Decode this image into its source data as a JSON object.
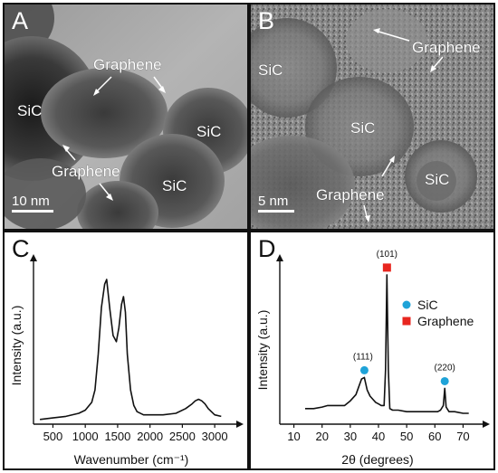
{
  "panels": {
    "a": {
      "letter": "A",
      "labels": {
        "sic_left": "SiC",
        "graphene_top": "Graphene",
        "sic_right": "SiC",
        "graphene_bottom": "Graphene",
        "sic_bottom": "SiC"
      },
      "scale_bar": "10 nm"
    },
    "b": {
      "letter": "B",
      "labels": {
        "graphene_top": "Graphene",
        "sic_topleft": "SiC",
        "sic_center": "SiC",
        "sic_right": "SiC",
        "graphene_bottom": "Graphene"
      },
      "scale_bar": "5 nm"
    },
    "c": {
      "letter": "C"
    },
    "d": {
      "letter": "D"
    }
  },
  "colors": {
    "sic_marker": "#1fa3d8",
    "graphene_marker": "#e8261f",
    "line": "#111111",
    "tem_background": "#8a8a8a"
  },
  "chart_data": [
    {
      "type": "line",
      "panel": "C",
      "title": "",
      "xlabel": "Wavenumber (cm⁻¹)",
      "ylabel": "Intensity (a.u.)",
      "xlim": [
        200,
        3250
      ],
      "ylim": [
        0,
        1
      ],
      "x_ticks": [
        500,
        1000,
        1500,
        2000,
        2500,
        3000
      ],
      "y_ticks_shown": false,
      "series": [
        {
          "x": [
            300,
            500,
            700,
            900,
            1000,
            1100,
            1150,
            1200,
            1250,
            1300,
            1330,
            1380,
            1430,
            1480,
            1520,
            1560,
            1590,
            1620,
            1650,
            1700,
            1750,
            1800,
            1900,
            2000,
            2200,
            2400,
            2550,
            2650,
            2700,
            2750,
            2800,
            2850,
            2900,
            3000,
            3100
          ],
          "y": [
            0.03,
            0.04,
            0.05,
            0.07,
            0.09,
            0.14,
            0.22,
            0.45,
            0.75,
            0.9,
            0.93,
            0.74,
            0.57,
            0.53,
            0.62,
            0.77,
            0.82,
            0.72,
            0.45,
            0.22,
            0.12,
            0.08,
            0.06,
            0.06,
            0.06,
            0.07,
            0.1,
            0.13,
            0.15,
            0.16,
            0.15,
            0.13,
            0.1,
            0.06,
            0.05
          ]
        }
      ]
    },
    {
      "type": "line",
      "panel": "D",
      "title": "",
      "xlabel": "2θ (degrees)",
      "ylabel": "Intensity (a.u.)",
      "xlim": [
        5,
        75
      ],
      "ylim": [
        0,
        1
      ],
      "x_ticks": [
        10,
        20,
        30,
        40,
        50,
        60,
        70
      ],
      "y_ticks_shown": false,
      "series": [
        {
          "x": [
            14,
            17,
            20,
            22,
            24,
            26,
            28,
            30,
            32,
            33,
            34,
            35,
            36,
            37,
            38,
            39,
            40,
            41,
            42,
            42.5,
            43,
            43.5,
            44,
            45,
            47,
            50,
            53,
            56,
            59,
            61,
            62,
            63,
            63.5,
            64,
            65,
            67,
            70,
            72
          ],
          "y": [
            0.1,
            0.1,
            0.11,
            0.12,
            0.12,
            0.12,
            0.12,
            0.15,
            0.19,
            0.24,
            0.29,
            0.3,
            0.22,
            0.18,
            0.16,
            0.14,
            0.13,
            0.12,
            0.12,
            0.35,
            0.96,
            0.35,
            0.1,
            0.09,
            0.09,
            0.08,
            0.08,
            0.08,
            0.08,
            0.08,
            0.09,
            0.12,
            0.23,
            0.11,
            0.08,
            0.08,
            0.07,
            0.07
          ]
        }
      ],
      "peak_labels": [
        {
          "text": "(101)",
          "x": 43,
          "y": 0.96
        },
        {
          "text": "(111)",
          "x": 34.5,
          "y": 0.3
        },
        {
          "text": "(220)",
          "x": 63.5,
          "y": 0.23
        }
      ],
      "markers": [
        {
          "phase": "Graphene",
          "shape": "square",
          "x": 43,
          "y": 0.96
        },
        {
          "phase": "SiC",
          "shape": "circle",
          "x": 35,
          "y": 0.3
        },
        {
          "phase": "SiC",
          "shape": "circle",
          "x": 63.5,
          "y": 0.23
        }
      ],
      "legend": [
        {
          "label": "SiC",
          "marker": "circle",
          "color": "#1fa3d8"
        },
        {
          "label": "Graphene",
          "marker": "square",
          "color": "#e8261f"
        }
      ],
      "legend_position": "top-right"
    }
  ]
}
